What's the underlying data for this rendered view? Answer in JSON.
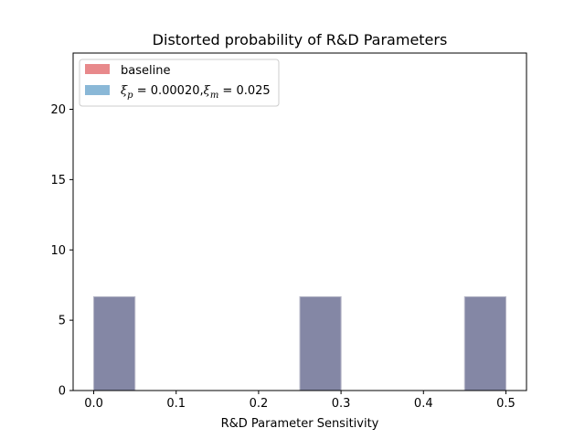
{
  "chart_data": {
    "type": "bar",
    "title": "Distorted probability of R&D Parameters",
    "xlabel": "R&D Parameter Sensitivity",
    "ylabel": "",
    "xlim": [
      -0.025,
      0.525
    ],
    "ylim": [
      0,
      24
    ],
    "xticks": [
      0.0,
      0.1,
      0.2,
      0.3,
      0.4,
      0.5
    ],
    "xtick_labels": [
      "0.0",
      "0.1",
      "0.2",
      "0.3",
      "0.4",
      "0.5"
    ],
    "yticks": [
      0,
      5,
      10,
      15,
      20
    ],
    "ytick_labels": [
      "0",
      "5",
      "10",
      "15",
      "20"
    ],
    "bin_width": 0.05,
    "grid": false,
    "legend_position": "top-left",
    "series": [
      {
        "name": "baseline",
        "color": "#e8898b",
        "bins": [
          {
            "x0": 0.0,
            "x1": 0.05,
            "value": 6.67
          },
          {
            "x0": 0.25,
            "x1": 0.3,
            "value": 6.67
          },
          {
            "x0": 0.45,
            "x1": 0.5,
            "value": 6.67
          }
        ]
      },
      {
        "name": "ξp = 0.00020, ξm = 0.025",
        "color": "#8ab8d7",
        "bins": [
          {
            "x0": 0.0,
            "x1": 0.05,
            "value": 6.67
          },
          {
            "x0": 0.25,
            "x1": 0.3,
            "value": 6.67
          },
          {
            "x0": 0.45,
            "x1": 0.5,
            "value": 6.67
          }
        ]
      }
    ],
    "overlap_color": "#8487a5",
    "legend": {
      "baseline_label": "baseline",
      "series2": {
        "xi": "ξ",
        "p_sub": "p",
        "eq_p": " = 0.00020,",
        "m_sub": "m",
        "eq_m": " = 0.025"
      }
    }
  }
}
